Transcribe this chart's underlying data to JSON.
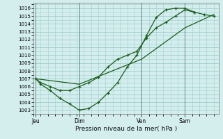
{
  "background_color": "#d4eeee",
  "grid_color": "#a0cccc",
  "line_color": "#1a5c1a",
  "title": "Pression niveau de la mer( hPa )",
  "ylim": [
    1002.5,
    1016.7
  ],
  "yticks": [
    1003,
    1004,
    1005,
    1006,
    1007,
    1008,
    1009,
    1010,
    1011,
    1012,
    1013,
    1014,
    1015,
    1016
  ],
  "xtick_labels": [
    "Jeu",
    "Dim",
    "Ven",
    "Sam"
  ],
  "xtick_positions": [
    0,
    9,
    22,
    31
  ],
  "xlim": [
    -0.5,
    38
  ],
  "line1_x": [
    0,
    1,
    3,
    5,
    7,
    9,
    11,
    13,
    15,
    17,
    19,
    21,
    23,
    25,
    27,
    29,
    31,
    33,
    35,
    37
  ],
  "line1_y": [
    1007,
    1006.5,
    1006,
    1005.5,
    1005.5,
    1006,
    1006.5,
    1007.2,
    1008.5,
    1009.5,
    1010,
    1010.5,
    1012.2,
    1013.5,
    1014.2,
    1015,
    1015.8,
    1015.5,
    1015.2,
    1015
  ],
  "line2_x": [
    0,
    1,
    3,
    5,
    7,
    9,
    11,
    13,
    15,
    17,
    19,
    21,
    23,
    25,
    27,
    29,
    31,
    33
  ],
  "line2_y": [
    1007,
    1006.3,
    1005.5,
    1004.5,
    1003.8,
    1003,
    1003.2,
    1004,
    1005.2,
    1006.5,
    1008.5,
    1010,
    1012.5,
    1014.8,
    1015.8,
    1016,
    1016,
    1015.5
  ],
  "line3_x": [
    0,
    9,
    22,
    31,
    37
  ],
  "line3_y": [
    1007,
    1006.3,
    1009.5,
    1013.5,
    1015.2
  ]
}
